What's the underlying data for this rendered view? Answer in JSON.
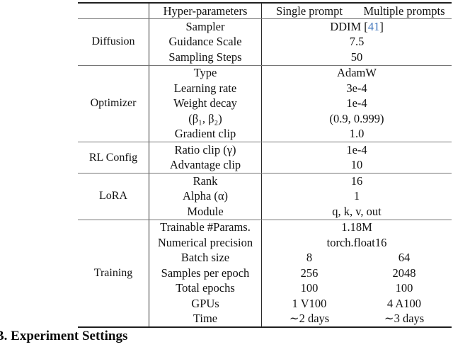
{
  "colors": {
    "cite_blue": "#3e74bc",
    "rule_dark": "#1f1f1f",
    "rule_gray": "#767676",
    "text": "#111111"
  },
  "section_heading": "B. Experiment Settings",
  "table": {
    "header": {
      "group_col": "",
      "param_col": "Hyper-parameters",
      "single_col": "Single prompt",
      "multiple_col": "Multiple prompts"
    },
    "groups": [
      {
        "label": "Diffusion",
        "rows": [
          {
            "param": "Sampler",
            "span_prefix": "DDIM [",
            "cite": "41",
            "span_suffix": "]"
          },
          {
            "param": "Guidance Scale",
            "span": "7.5"
          },
          {
            "param": "Sampling Steps",
            "span": "50"
          }
        ]
      },
      {
        "label": "Optimizer",
        "rows": [
          {
            "param": "Type",
            "span": "AdamW"
          },
          {
            "param": "Learning rate",
            "span": "3e-4"
          },
          {
            "param": "Weight decay",
            "span": "1e-4"
          },
          {
            "param": "(β₁, β₂)",
            "span": "(0.9, 0.999)"
          },
          {
            "param": "Gradient clip",
            "span": "1.0"
          }
        ]
      },
      {
        "label": "RL Config",
        "rows": [
          {
            "param": "Ratio clip (γ)",
            "span": "1e-4"
          },
          {
            "param": "Advantage clip",
            "span": "10"
          }
        ]
      },
      {
        "label": "LoRA",
        "rows": [
          {
            "param": "Rank",
            "span": "16"
          },
          {
            "param": "Alpha (α)",
            "span": "1"
          },
          {
            "param": "Module",
            "span": "q, k, v, out"
          }
        ]
      },
      {
        "label": "Training",
        "rows": [
          {
            "param": "Trainable #Params.",
            "span": "1.18M"
          },
          {
            "param": "Numerical precision",
            "span": "torch.float16"
          },
          {
            "param": "Batch size",
            "single": "8",
            "multiple": "64"
          },
          {
            "param": "Samples per epoch",
            "single": "256",
            "multiple": "2048"
          },
          {
            "param": "Total epochs",
            "single": "100",
            "multiple": "100"
          },
          {
            "param": "GPUs",
            "single": "1 V100",
            "multiple": "4 A100"
          },
          {
            "param": "Time",
            "single": "∼2 days",
            "multiple": "∼3 days"
          }
        ]
      }
    ]
  }
}
